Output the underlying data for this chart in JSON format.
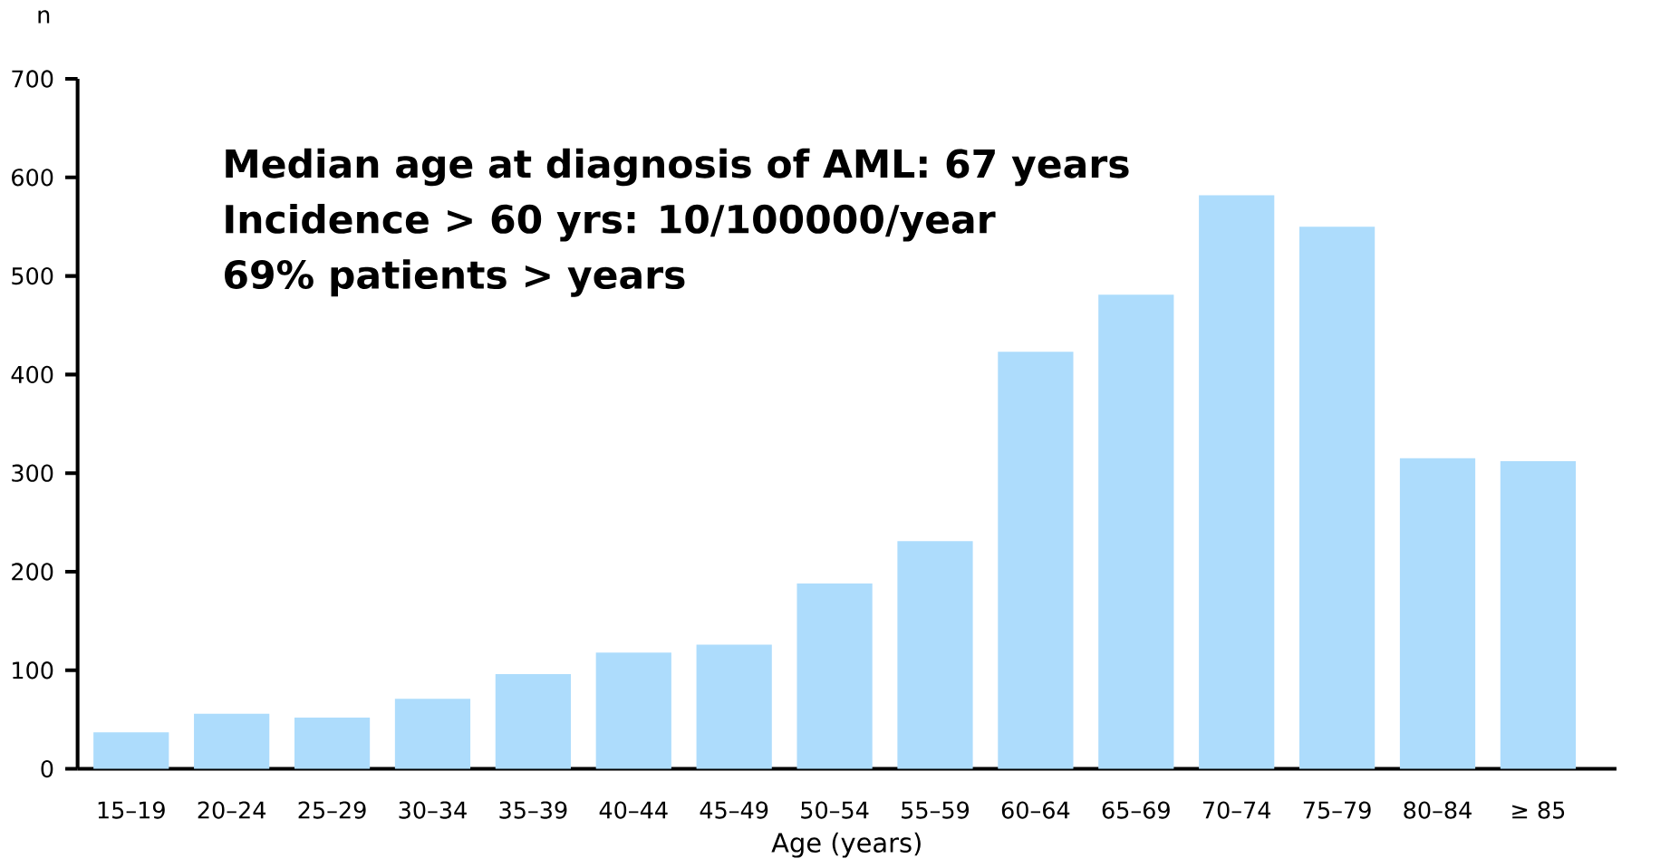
{
  "chart_data": {
    "type": "bar",
    "ylabel": "n",
    "xlabel": "Age (years)",
    "categories": [
      "15–19",
      "20–24",
      "25–29",
      "30–34",
      "35–39",
      "40–44",
      "45–49",
      "50–54",
      "55–59",
      "60–64",
      "65–69",
      "70–74",
      "75–79",
      "80–84",
      "≥ 85"
    ],
    "values": [
      37,
      56,
      52,
      71,
      96,
      118,
      126,
      188,
      231,
      423,
      481,
      582,
      550,
      315,
      312
    ],
    "color": "#addcfc",
    "ylim": [
      0,
      700
    ],
    "yticks": [
      0,
      100,
      200,
      300,
      400,
      500,
      600,
      700
    ],
    "annotations": [
      "Median age at diagnosis of AML: 67 years",
      "Incidence > 60 yrs: 10/100000/year",
      "69% patients > years"
    ]
  }
}
